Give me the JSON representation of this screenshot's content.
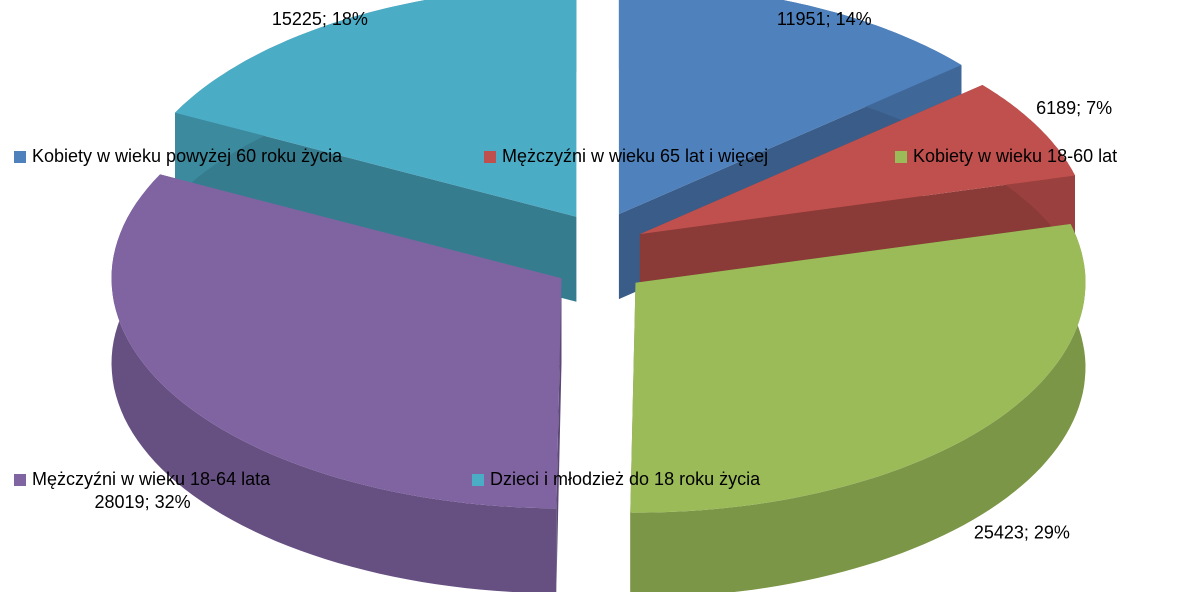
{
  "chart_data": {
    "type": "pie",
    "categories": [
      "Kobiety w wieku powyżej 60 roku życia",
      "Mężczyźni w wieku 65 lat i więcej",
      "Kobiety w wieku 18-60 lat",
      "Mężczyźni w wieku 18-64 lata",
      "Dzieci i młodzież do 18 roku życia"
    ],
    "values": [
      11951,
      6189,
      25423,
      28019,
      15225
    ],
    "value_labels": [
      "11951; 14%",
      "6189; 7%",
      "25423; 29%",
      "28019; 32%",
      "15225; 18%"
    ],
    "colors": [
      "#4f81bd",
      "#c0504d",
      "#9bbb59",
      "#8064a2",
      "#4bacc6"
    ]
  }
}
